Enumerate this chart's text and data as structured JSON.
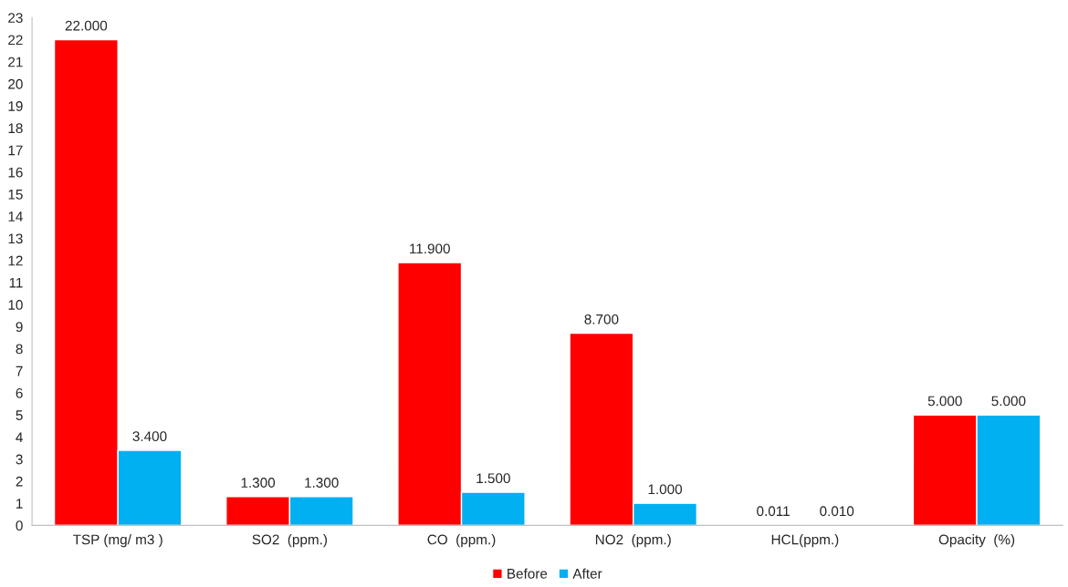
{
  "chart_data": {
    "type": "bar",
    "categories": [
      "TSP (mg/ m3 )",
      "SO2  (ppm.)",
      "CO  (ppm.)",
      "NO2  (ppm.)",
      "HCL(ppm.)",
      "Opacity  (%)"
    ],
    "series": [
      {
        "name": "Before",
        "color": "#ff0000",
        "values": [
          22,
          1.3,
          11.9,
          8.7,
          0.011,
          5
        ],
        "value_labels": [
          "22.000",
          "1.300",
          "11.900",
          "8.700",
          "0.011",
          "5.000"
        ]
      },
      {
        "name": "After",
        "color": "#00b0f0",
        "values": [
          3.4,
          1.3,
          1.5,
          1.0,
          0.01,
          5
        ],
        "value_labels": [
          "3.400",
          "1.300",
          "1.500",
          "1.000",
          "0.010",
          "5.000"
        ]
      }
    ],
    "ylim": [
      0,
      23
    ],
    "yticks": [
      0,
      1,
      2,
      3,
      4,
      5,
      6,
      7,
      8,
      9,
      10,
      11,
      12,
      13,
      14,
      15,
      16,
      17,
      18,
      19,
      20,
      21,
      22,
      23
    ],
    "grid": false,
    "legend": "bottom"
  }
}
